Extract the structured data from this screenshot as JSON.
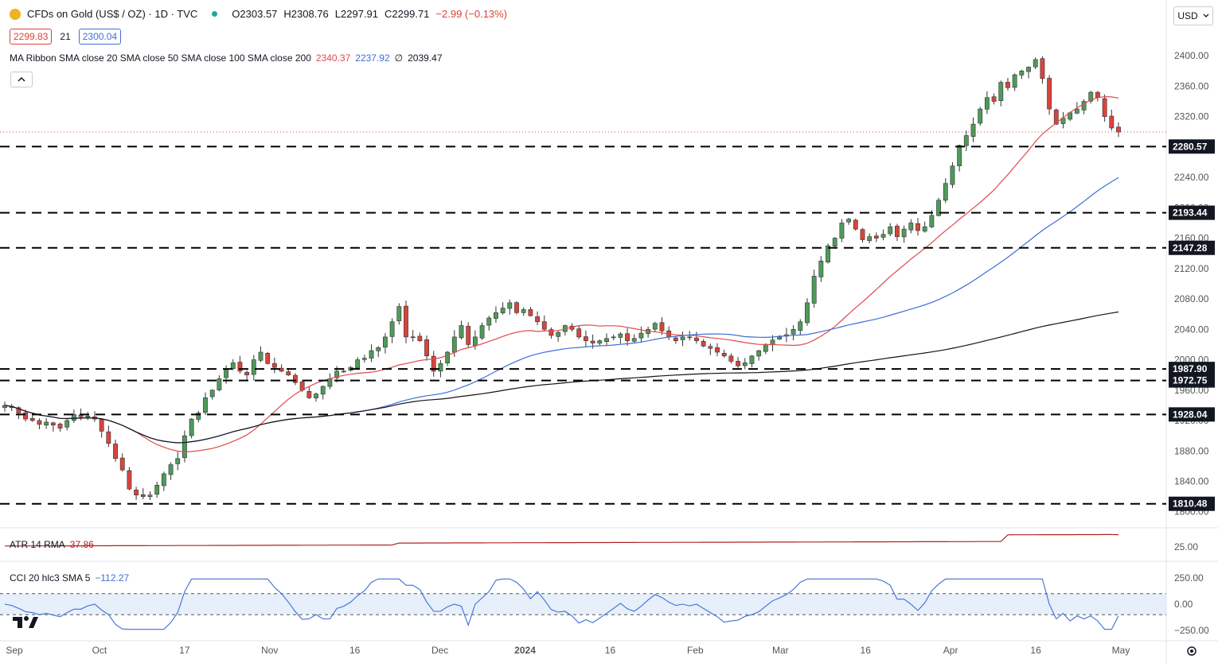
{
  "header": {
    "symbol_title": "CFDs on Gold (US$ / OZ) · 1D · TVC",
    "ohlc": {
      "o": "O2303.57",
      "h": "H2308.76",
      "l": "L2297.91",
      "c": "C2299.71",
      "chg": "−2.99 (−0.13%)"
    },
    "bid": "2299.83",
    "spread": "21",
    "ask": "2300.04",
    "currency": "USD"
  },
  "ma_legend": {
    "label": "MA Ribbon SMA close 20 SMA close 50 SMA close 100 SMA close 200",
    "v20": "2340.37",
    "v50": "2237.92",
    "v100": "∅",
    "v200": "2039.47"
  },
  "atr_legend": {
    "label": "ATR 14 RMA",
    "value": "37.86"
  },
  "cci_legend": {
    "label": "CCI 20 hlc3 SMA 5",
    "value": "−112.27"
  },
  "icons": {
    "collapse": "chevron-up-icon",
    "logo": "tradingview-logo-icon",
    "settings": "gear-icon"
  },
  "colors": {
    "up": "#4e9a5a",
    "down": "#d9443c",
    "sma20": "#e04a4a",
    "sma50": "#3d6fd6",
    "sma200": "#141414",
    "cci": "#3d6fd6",
    "atr": "#b22222"
  },
  "chart_data": {
    "type": "candlestick",
    "title": "CFDs on Gold (US$ / OZ)",
    "x_tick_labels": [
      "Sep",
      "Oct",
      "17",
      "Nov",
      "16",
      "Dec",
      "2024",
      "16",
      "Feb",
      "Mar",
      "16",
      "Apr",
      "16",
      "May"
    ],
    "y_tick_labels": [
      "1800.00",
      "1840.00",
      "1880.00",
      "1920.00",
      "1960.00",
      "2000.00",
      "2040.00",
      "2080.00",
      "2120.00",
      "2160.00",
      "2200.00",
      "2240.00",
      "2280.00",
      "2320.00",
      "2360.00",
      "2400.00"
    ],
    "ylim": [
      1783,
      2442
    ],
    "last_price": 2299.71,
    "horizontal_levels": [
      "2280.57",
      "2193.44",
      "2147.28",
      "1987.90",
      "1972.75",
      "1928.04",
      "1810.48"
    ],
    "closes": [
      1940,
      1937,
      1930,
      1922,
      1920,
      1915,
      1918,
      1914,
      1910,
      1920,
      1928,
      1925,
      1926,
      1922,
      1906,
      1890,
      1870,
      1855,
      1830,
      1822,
      1820,
      1822,
      1835,
      1850,
      1862,
      1870,
      1900,
      1922,
      1930,
      1950,
      1960,
      1975,
      1988,
      1996,
      1985,
      1980,
      2000,
      2010,
      1995,
      1990,
      1985,
      1980,
      1970,
      1960,
      1950,
      1955,
      1965,
      1975,
      1985,
      1985,
      1990,
      2000,
      2002,
      2012,
      2016,
      2030,
      2050,
      2070,
      2030,
      2030,
      2025,
      2005,
      1985,
      1995,
      2010,
      2030,
      2045,
      2020,
      2030,
      2045,
      2055,
      2062,
      2068,
      2075,
      2062,
      2066,
      2058,
      2050,
      2040,
      2032,
      2036,
      2045,
      2040,
      2030,
      2025,
      2022,
      2025,
      2028,
      2030,
      2034,
      2025,
      2028,
      2035,
      2040,
      2048,
      2038,
      2030,
      2025,
      2030,
      2030,
      2025,
      2018,
      2015,
      2010,
      2005,
      1998,
      1992,
      1996,
      2005,
      2012,
      2020,
      2026,
      2030,
      2033,
      2040,
      2050,
      2075,
      2110,
      2130,
      2150,
      2160,
      2180,
      2185,
      2172,
      2158,
      2162,
      2160,
      2165,
      2175,
      2162,
      2172,
      2180,
      2170,
      2175,
      2190,
      2210,
      2232,
      2255,
      2282,
      2295,
      2310,
      2330,
      2345,
      2340,
      2365,
      2358,
      2375,
      2380,
      2385,
      2395,
      2370,
      2330,
      2310,
      2318,
      2325,
      2330,
      2340,
      2352,
      2345,
      2320,
      2305,
      2299.71
    ],
    "volatility": 8,
    "sma_20_last": 2340.37,
    "sma_50_last": 2237.92,
    "sma_200_last": 2039.47,
    "atr": {
      "label": "ATR 14 RMA",
      "last": 37.86,
      "y_tick_labels": [
        "25.00"
      ]
    },
    "cci": {
      "label": "CCI 20 hlc3 SMA 5",
      "last": -112.27,
      "y_tick_labels": [
        "250.00",
        "0.00",
        "−250.00"
      ],
      "band": [
        -100,
        100
      ]
    }
  }
}
